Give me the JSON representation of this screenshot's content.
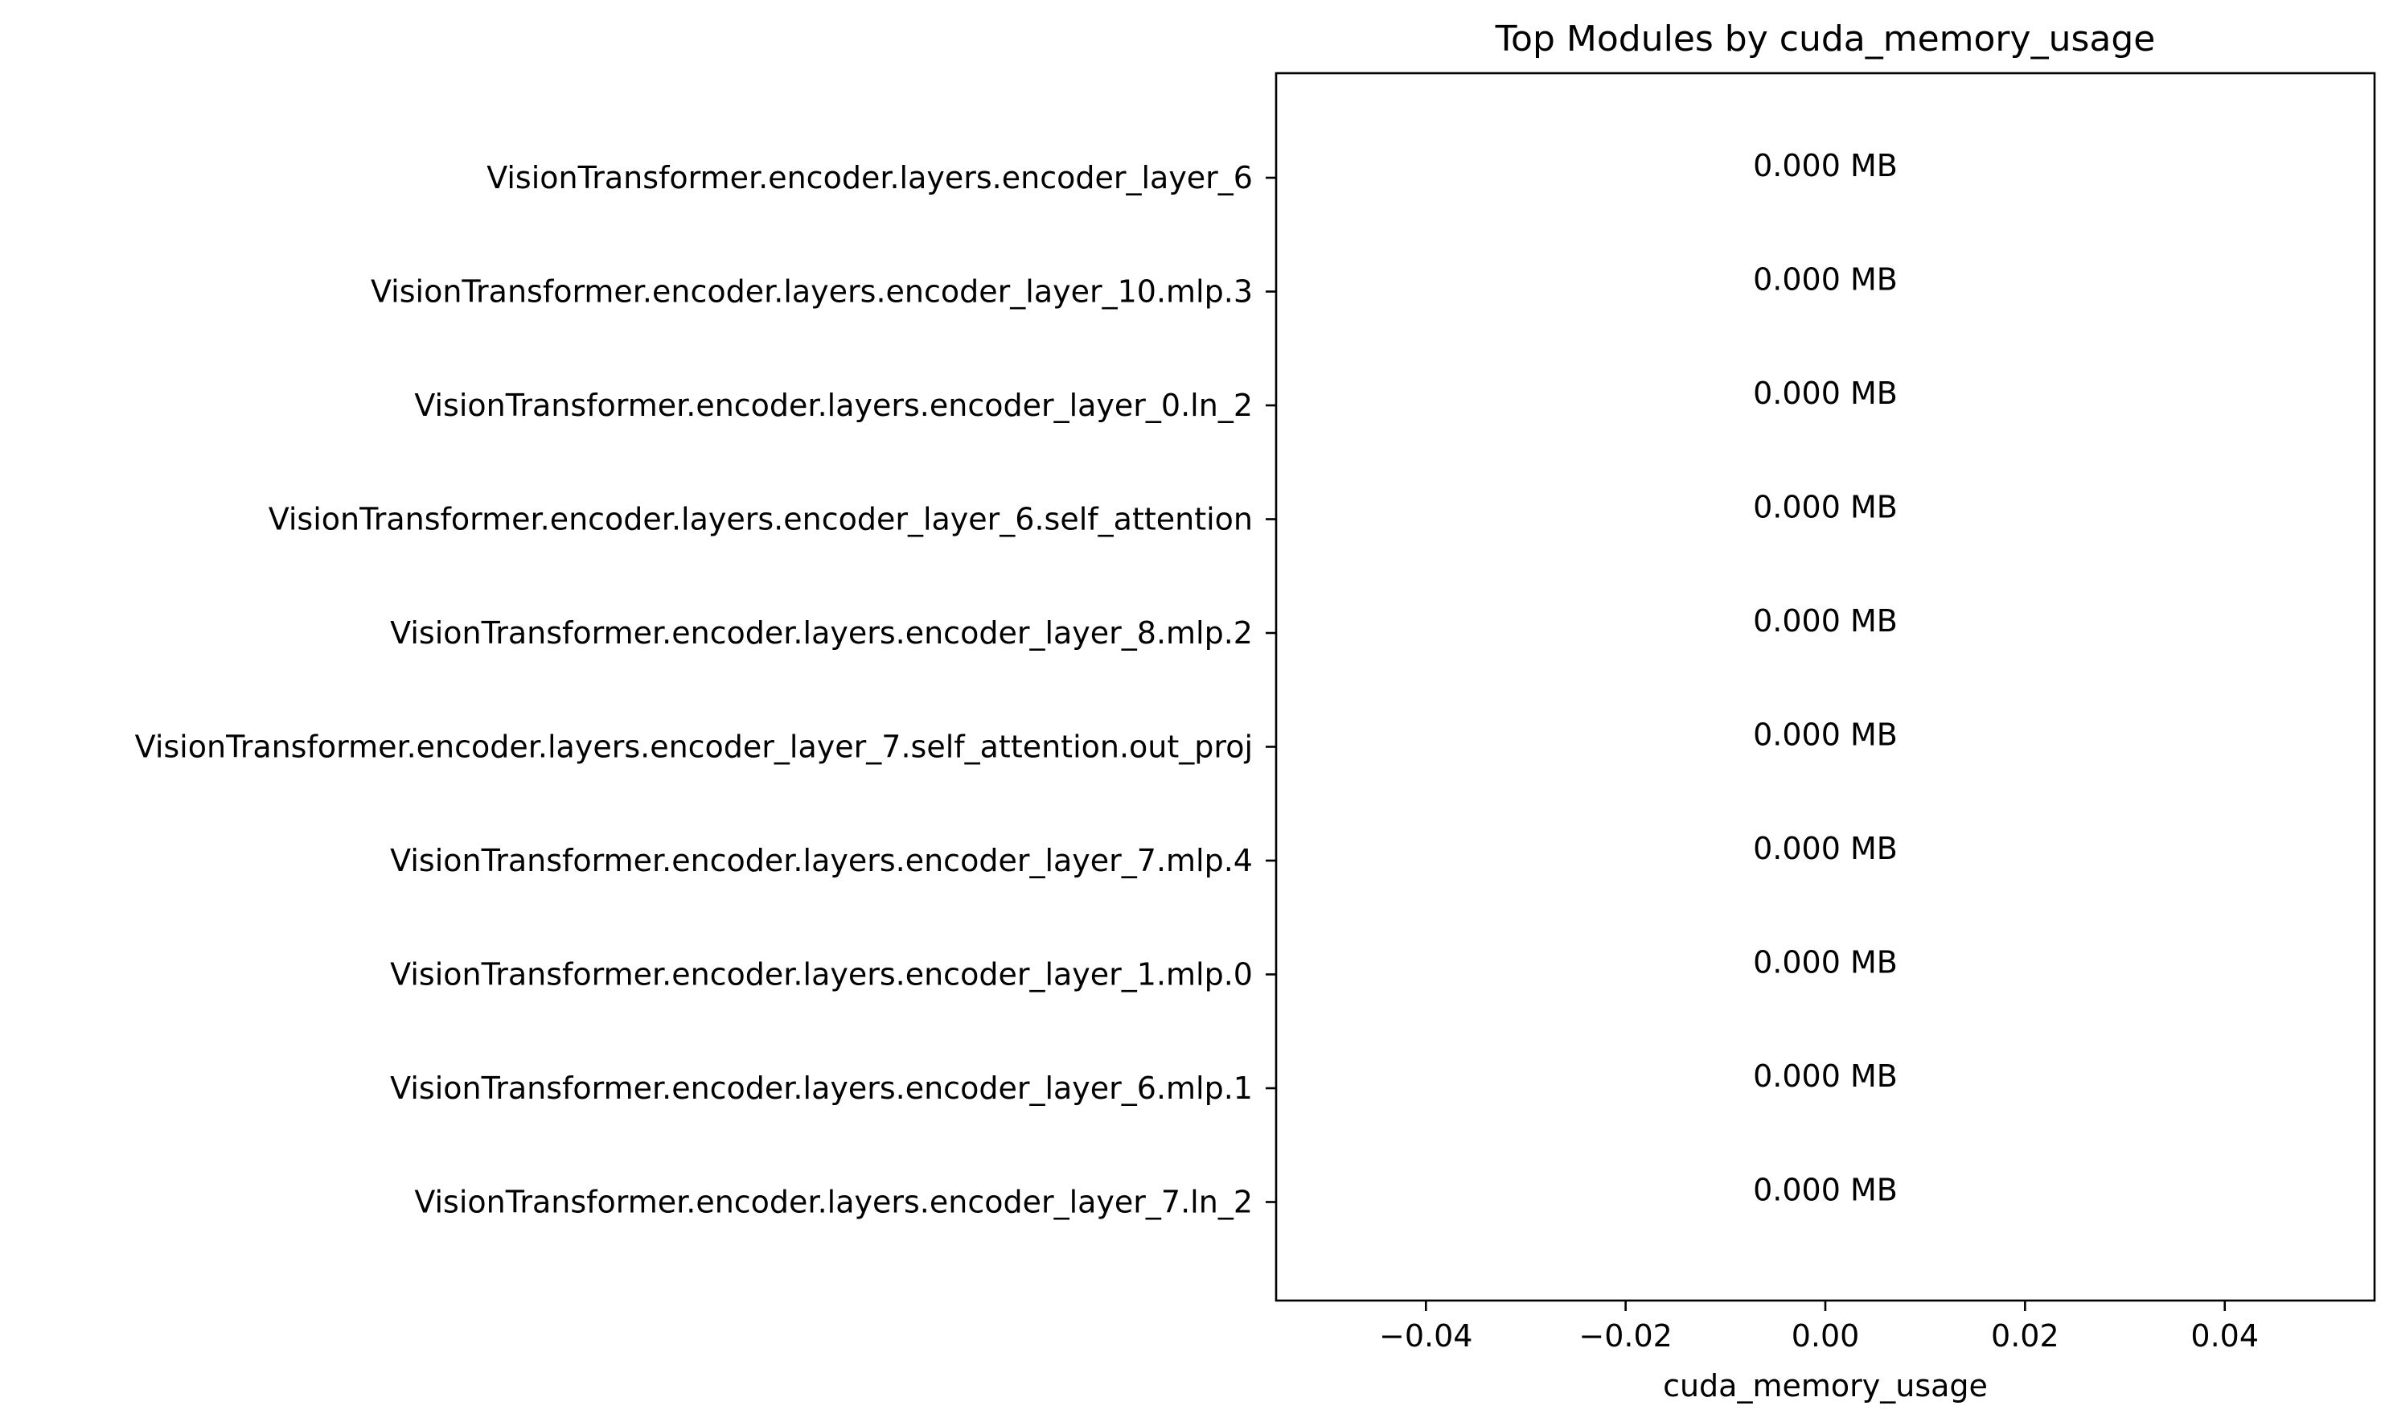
{
  "chart_data": {
    "type": "bar",
    "orientation": "horizontal",
    "title": "Top Modules by cuda_memory_usage",
    "xlabel": "cuda_memory_usage",
    "ylabel": "",
    "categories": [
      "VisionTransformer.encoder.layers.encoder_layer_6",
      "VisionTransformer.encoder.layers.encoder_layer_10.mlp.3",
      "VisionTransformer.encoder.layers.encoder_layer_0.ln_2",
      "VisionTransformer.encoder.layers.encoder_layer_6.self_attention",
      "VisionTransformer.encoder.layers.encoder_layer_8.mlp.2",
      "VisionTransformer.encoder.layers.encoder_layer_7.self_attention.out_proj",
      "VisionTransformer.encoder.layers.encoder_layer_7.mlp.4",
      "VisionTransformer.encoder.layers.encoder_layer_1.mlp.0",
      "VisionTransformer.encoder.layers.encoder_layer_6.mlp.1",
      "VisionTransformer.encoder.layers.encoder_layer_7.ln_2"
    ],
    "values": [
      0,
      0,
      0,
      0,
      0,
      0,
      0,
      0,
      0,
      0
    ],
    "data_labels": [
      "0.000 MB",
      "0.000 MB",
      "0.000 MB",
      "0.000 MB",
      "0.000 MB",
      "0.000 MB",
      "0.000 MB",
      "0.000 MB",
      "0.000 MB",
      "0.000 MB"
    ],
    "xlim": [
      -0.055,
      0.055
    ],
    "xticks": [
      -0.04,
      -0.02,
      0.0,
      0.02,
      0.04
    ],
    "xtick_labels": [
      "−0.04",
      "−0.02",
      "0.00",
      "0.02",
      "0.04"
    ],
    "bar_color": "#1f77b4",
    "grid": false,
    "legend": "none"
  }
}
